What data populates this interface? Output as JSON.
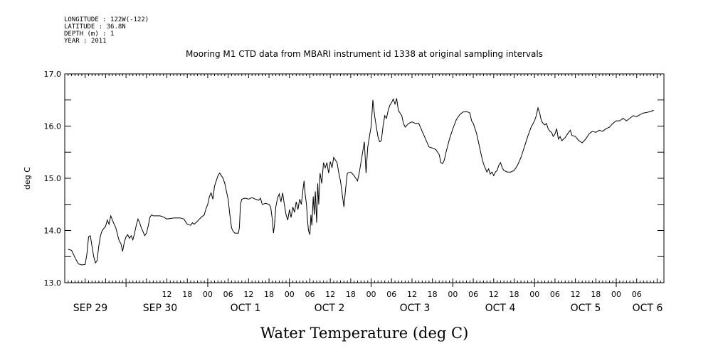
{
  "header": {
    "metadata": [
      "LONGITUDE : 122W(-122)",
      "LATITUDE : 36.8N",
      "DEPTH (m) : 1",
      "YEAR : 2011"
    ]
  },
  "chart_data": {
    "type": "line",
    "title": "Mooring M1 CTD data from MBARI instrument id 1338 at original sampling intervals",
    "xlabel": "Water Temperature (deg C)",
    "ylabel": "deg C",
    "ylim": [
      13.0,
      17.0
    ],
    "y_ticks": [
      "13.0",
      "14.0",
      "15.0",
      "16.0",
      "17.0"
    ],
    "x_range_hours": [
      -18,
      158
    ],
    "hour_ticks": [
      {
        "h": 12,
        "label": "12"
      },
      {
        "h": 18,
        "label": "18"
      },
      {
        "h": 24,
        "label": "00"
      },
      {
        "h": 30,
        "label": "06"
      },
      {
        "h": 36,
        "label": "12"
      },
      {
        "h": 42,
        "label": "18"
      },
      {
        "h": 48,
        "label": "00"
      },
      {
        "h": 54,
        "label": "06"
      },
      {
        "h": 60,
        "label": "12"
      },
      {
        "h": 66,
        "label": "18"
      },
      {
        "h": 72,
        "label": "00"
      },
      {
        "h": 78,
        "label": "06"
      },
      {
        "h": 84,
        "label": "12"
      },
      {
        "h": 90,
        "label": "18"
      },
      {
        "h": 96,
        "label": "00"
      },
      {
        "h": 102,
        "label": "06"
      },
      {
        "h": 108,
        "label": "12"
      },
      {
        "h": 114,
        "label": "18"
      },
      {
        "h": 120,
        "label": "00"
      },
      {
        "h": 126,
        "label": "06"
      },
      {
        "h": 132,
        "label": "12"
      },
      {
        "h": 138,
        "label": "18"
      },
      {
        "h": 144,
        "label": "00"
      },
      {
        "h": 150,
        "label": "06"
      }
    ],
    "date_labels": [
      {
        "h": 12,
        "label": "SEP 29"
      },
      {
        "h": 36,
        "label": "SEP 30"
      },
      {
        "h": 60,
        "label": "OCT  1"
      },
      {
        "h": 84,
        "label": "OCT  2"
      },
      {
        "h": 108,
        "label": "OCT  3"
      },
      {
        "h": 132,
        "label": "OCT  4"
      },
      {
        "h": 156,
        "label": "OCT  5"
      },
      {
        "h": 180,
        "label": "OCT  6"
      }
    ],
    "grid": false,
    "series": [
      {
        "values": [
          [
            -17,
            13.64
          ],
          [
            -16,
            13.62
          ],
          [
            -15,
            13.48
          ],
          [
            -14,
            13.36
          ],
          [
            -13,
            13.34
          ],
          [
            -12,
            13.35
          ],
          [
            -11.5,
            13.55
          ],
          [
            -11,
            13.88
          ],
          [
            -10.5,
            13.9
          ],
          [
            -10,
            13.7
          ],
          [
            -9.5,
            13.5
          ],
          [
            -9,
            13.38
          ],
          [
            -8.5,
            13.42
          ],
          [
            -8,
            13.7
          ],
          [
            -7.5,
            13.9
          ],
          [
            -7,
            14.0
          ],
          [
            -6,
            14.08
          ],
          [
            -5.5,
            14.2
          ],
          [
            -5,
            14.12
          ],
          [
            -4.5,
            14.28
          ],
          [
            -4,
            14.2
          ],
          [
            -3.5,
            14.12
          ],
          [
            -3,
            14.05
          ],
          [
            -2.5,
            13.92
          ],
          [
            -2,
            13.8
          ],
          [
            -1.5,
            13.75
          ],
          [
            -1,
            13.6
          ],
          [
            -0.5,
            13.78
          ],
          [
            0,
            13.88
          ],
          [
            0.5,
            13.92
          ],
          [
            1,
            13.85
          ],
          [
            1.5,
            13.9
          ],
          [
            2,
            13.82
          ],
          [
            2.5,
            13.95
          ],
          [
            3,
            14.1
          ],
          [
            3.5,
            14.22
          ],
          [
            4,
            14.15
          ],
          [
            4.5,
            14.05
          ],
          [
            5,
            13.98
          ],
          [
            5.5,
            13.9
          ],
          [
            6,
            13.95
          ],
          [
            6.5,
            14.08
          ],
          [
            7,
            14.25
          ],
          [
            7.5,
            14.3
          ],
          [
            8,
            14.28
          ],
          [
            10,
            14.28
          ],
          [
            11,
            14.26
          ],
          [
            12,
            14.22
          ],
          [
            14,
            14.24
          ],
          [
            16,
            14.24
          ],
          [
            17,
            14.22
          ],
          [
            18,
            14.12
          ],
          [
            19,
            14.1
          ],
          [
            19.5,
            14.15
          ],
          [
            20,
            14.12
          ],
          [
            21,
            14.18
          ],
          [
            22,
            14.25
          ],
          [
            23,
            14.3
          ],
          [
            23.5,
            14.42
          ],
          [
            24,
            14.5
          ],
          [
            24.5,
            14.65
          ],
          [
            25,
            14.72
          ],
          [
            25.5,
            14.6
          ],
          [
            26,
            14.85
          ],
          [
            26.5,
            14.95
          ],
          [
            27,
            15.05
          ],
          [
            27.5,
            15.1
          ],
          [
            28,
            15.05
          ],
          [
            28.5,
            15.0
          ],
          [
            29,
            14.9
          ],
          [
            29.5,
            14.75
          ],
          [
            30,
            14.6
          ],
          [
            30.5,
            14.3
          ],
          [
            31,
            14.05
          ],
          [
            31.5,
            13.98
          ],
          [
            32,
            13.95
          ],
          [
            33,
            13.95
          ],
          [
            33.3,
            14.05
          ],
          [
            33.6,
            14.5
          ],
          [
            34,
            14.6
          ],
          [
            35,
            14.62
          ],
          [
            36,
            14.6
          ],
          [
            37,
            14.63
          ],
          [
            38,
            14.6
          ],
          [
            39,
            14.58
          ],
          [
            39.5,
            14.62
          ],
          [
            40,
            14.5
          ],
          [
            41,
            14.52
          ],
          [
            42,
            14.5
          ],
          [
            42.5,
            14.45
          ],
          [
            43,
            14.2
          ],
          [
            43.3,
            13.95
          ],
          [
            43.6,
            14.1
          ],
          [
            44,
            14.45
          ],
          [
            44.5,
            14.62
          ],
          [
            45,
            14.7
          ],
          [
            45.5,
            14.55
          ],
          [
            46,
            14.72
          ],
          [
            46.5,
            14.5
          ],
          [
            47,
            14.3
          ],
          [
            47.5,
            14.2
          ],
          [
            48,
            14.4
          ],
          [
            48.5,
            14.25
          ],
          [
            49,
            14.45
          ],
          [
            49.5,
            14.35
          ],
          [
            50,
            14.55
          ],
          [
            50.5,
            14.4
          ],
          [
            51,
            14.6
          ],
          [
            51.5,
            14.5
          ],
          [
            52,
            14.8
          ],
          [
            52.3,
            14.95
          ],
          [
            52.6,
            14.7
          ],
          [
            53,
            14.5
          ],
          [
            53.3,
            14.2
          ],
          [
            53.6,
            14.0
          ],
          [
            54,
            13.92
          ],
          [
            54.3,
            14.3
          ],
          [
            54.6,
            14.1
          ],
          [
            55,
            14.65
          ],
          [
            55.3,
            14.3
          ],
          [
            55.6,
            14.75
          ],
          [
            56,
            14.15
          ],
          [
            56.3,
            14.9
          ],
          [
            56.6,
            14.5
          ],
          [
            57,
            15.1
          ],
          [
            57.5,
            14.9
          ],
          [
            58,
            15.3
          ],
          [
            58.5,
            15.2
          ],
          [
            59,
            15.3
          ],
          [
            59.5,
            15.1
          ],
          [
            60,
            15.32
          ],
          [
            60.5,
            15.2
          ],
          [
            61,
            15.4
          ],
          [
            61.5,
            15.35
          ],
          [
            62,
            15.3
          ],
          [
            62.5,
            15.1
          ],
          [
            63,
            14.95
          ],
          [
            63.5,
            14.7
          ],
          [
            64,
            14.45
          ],
          [
            64.5,
            14.8
          ],
          [
            65,
            15.1
          ],
          [
            66,
            15.12
          ],
          [
            67,
            15.05
          ],
          [
            67.5,
            15.0
          ],
          [
            68,
            14.95
          ],
          [
            68.5,
            15.1
          ],
          [
            69,
            15.3
          ],
          [
            69.5,
            15.5
          ],
          [
            70,
            15.7
          ],
          [
            70.5,
            15.1
          ],
          [
            71,
            15.6
          ],
          [
            71.5,
            15.8
          ],
          [
            72,
            16.0
          ],
          [
            72.5,
            16.5
          ],
          [
            73,
            16.2
          ],
          [
            73.5,
            16.0
          ],
          [
            74,
            15.8
          ],
          [
            74.5,
            15.7
          ],
          [
            75,
            15.72
          ],
          [
            75.5,
            16.0
          ],
          [
            76,
            16.2
          ],
          [
            76.5,
            16.15
          ],
          [
            77,
            16.3
          ],
          [
            77.5,
            16.4
          ],
          [
            78,
            16.45
          ],
          [
            78.5,
            16.52
          ],
          [
            79,
            16.42
          ],
          [
            79.5,
            16.53
          ],
          [
            80,
            16.3
          ],
          [
            80.5,
            16.25
          ],
          [
            81,
            16.2
          ],
          [
            81.5,
            16.05
          ],
          [
            82,
            15.98
          ],
          [
            83,
            16.05
          ],
          [
            84,
            16.08
          ],
          [
            85,
            16.05
          ],
          [
            86,
            16.05
          ],
          [
            87,
            15.9
          ],
          [
            88,
            15.75
          ],
          [
            89,
            15.6
          ],
          [
            90,
            15.58
          ],
          [
            91,
            15.55
          ],
          [
            92,
            15.45
          ],
          [
            92.5,
            15.3
          ],
          [
            93,
            15.28
          ],
          [
            93.5,
            15.35
          ],
          [
            94,
            15.5
          ],
          [
            95,
            15.75
          ],
          [
            96,
            15.95
          ],
          [
            97,
            16.12
          ],
          [
            98,
            16.22
          ],
          [
            99,
            16.27
          ],
          [
            100,
            16.28
          ],
          [
            101,
            16.25
          ],
          [
            101.5,
            16.1
          ],
          [
            102,
            16.05
          ],
          [
            102.5,
            15.95
          ],
          [
            103,
            15.85
          ],
          [
            103.5,
            15.7
          ],
          [
            104,
            15.55
          ],
          [
            104.5,
            15.4
          ],
          [
            105,
            15.28
          ],
          [
            105.5,
            15.2
          ],
          [
            106,
            15.12
          ],
          [
            106.5,
            15.18
          ],
          [
            107,
            15.08
          ],
          [
            107.5,
            15.12
          ],
          [
            108,
            15.05
          ],
          [
            108.5,
            15.12
          ],
          [
            109,
            15.15
          ],
          [
            109.5,
            15.25
          ],
          [
            110,
            15.3
          ],
          [
            110.5,
            15.2
          ],
          [
            111,
            15.15
          ],
          [
            112,
            15.12
          ],
          [
            113,
            15.12
          ],
          [
            114,
            15.15
          ],
          [
            115,
            15.25
          ],
          [
            116,
            15.4
          ],
          [
            117,
            15.6
          ],
          [
            118,
            15.8
          ],
          [
            119,
            15.98
          ],
          [
            120,
            16.1
          ],
          [
            120.5,
            16.2
          ],
          [
            121,
            16.35
          ],
          [
            121.5,
            16.25
          ],
          [
            122,
            16.1
          ],
          [
            122.5,
            16.05
          ],
          [
            123,
            16.02
          ],
          [
            123.5,
            16.05
          ],
          [
            124,
            15.95
          ],
          [
            124.5,
            15.9
          ],
          [
            125,
            15.88
          ],
          [
            125.5,
            15.8
          ],
          [
            126,
            15.85
          ],
          [
            126.5,
            15.95
          ],
          [
            127,
            15.75
          ],
          [
            127.5,
            15.8
          ],
          [
            128,
            15.72
          ],
          [
            129,
            15.78
          ],
          [
            130,
            15.88
          ],
          [
            130.5,
            15.92
          ],
          [
            131,
            15.82
          ],
          [
            132,
            15.8
          ],
          [
            133,
            15.72
          ],
          [
            134,
            15.68
          ],
          [
            135,
            15.75
          ],
          [
            136,
            15.85
          ],
          [
            137,
            15.9
          ],
          [
            138,
            15.88
          ],
          [
            139,
            15.92
          ],
          [
            140,
            15.9
          ],
          [
            141,
            15.95
          ],
          [
            142,
            15.98
          ],
          [
            143,
            16.05
          ],
          [
            144,
            16.1
          ],
          [
            145,
            16.1
          ],
          [
            146,
            16.15
          ],
          [
            147,
            16.1
          ],
          [
            148,
            16.15
          ],
          [
            149,
            16.2
          ],
          [
            150,
            16.18
          ],
          [
            151,
            16.22
          ],
          [
            152,
            16.25
          ],
          [
            153,
            16.26
          ],
          [
            154,
            16.28
          ],
          [
            155,
            16.3
          ]
        ]
      }
    ]
  }
}
